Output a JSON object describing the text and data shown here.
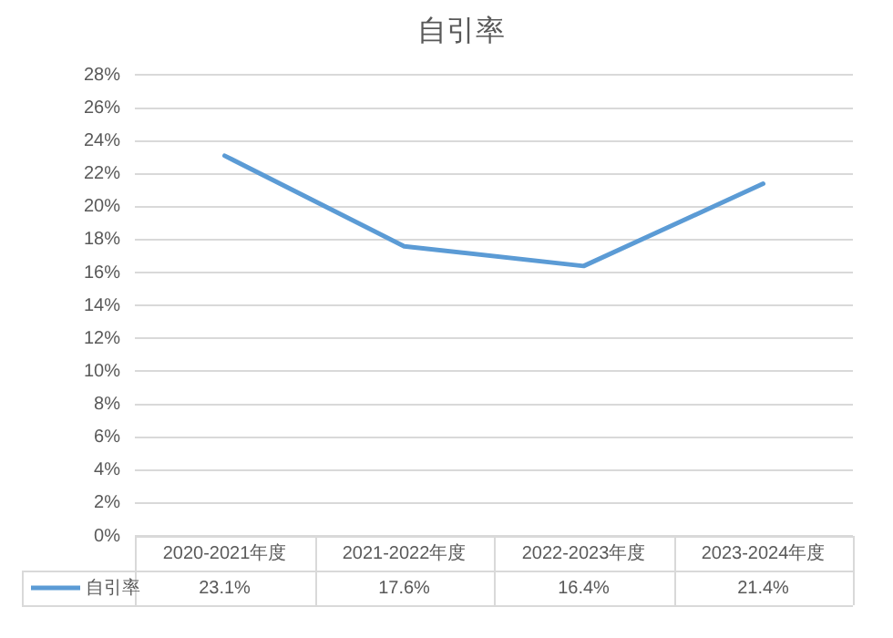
{
  "chart_data": {
    "type": "line",
    "title": "自引率",
    "categories": [
      "2020-2021年度",
      "2021-2022年度",
      "2022-2023年度",
      "2023-2024年度"
    ],
    "series": [
      {
        "name": "自引率",
        "color": "#5b9bd5",
        "values": [
          23.1,
          17.6,
          16.4,
          21.4
        ],
        "value_labels": [
          "23.1%",
          "17.6%",
          "16.4%",
          "21.4%"
        ]
      }
    ],
    "ylim": [
      0,
      28
    ],
    "yticks": [
      {
        "value": 0,
        "label": "0%"
      },
      {
        "value": 2,
        "label": "2%"
      },
      {
        "value": 4,
        "label": "4%"
      },
      {
        "value": 6,
        "label": "6%"
      },
      {
        "value": 8,
        "label": "8%"
      },
      {
        "value": 10,
        "label": "10%"
      },
      {
        "value": 12,
        "label": "12%"
      },
      {
        "value": 14,
        "label": "14%"
      },
      {
        "value": 16,
        "label": "16%"
      },
      {
        "value": 18,
        "label": "18%"
      },
      {
        "value": 20,
        "label": "20%"
      },
      {
        "value": 22,
        "label": "22%"
      },
      {
        "value": 24,
        "label": "24%"
      },
      {
        "value": 26,
        "label": "26%"
      },
      {
        "value": 28,
        "label": "28%"
      }
    ],
    "grid": "y",
    "legend": "bottom",
    "marker": "none",
    "line_style": "solid"
  }
}
